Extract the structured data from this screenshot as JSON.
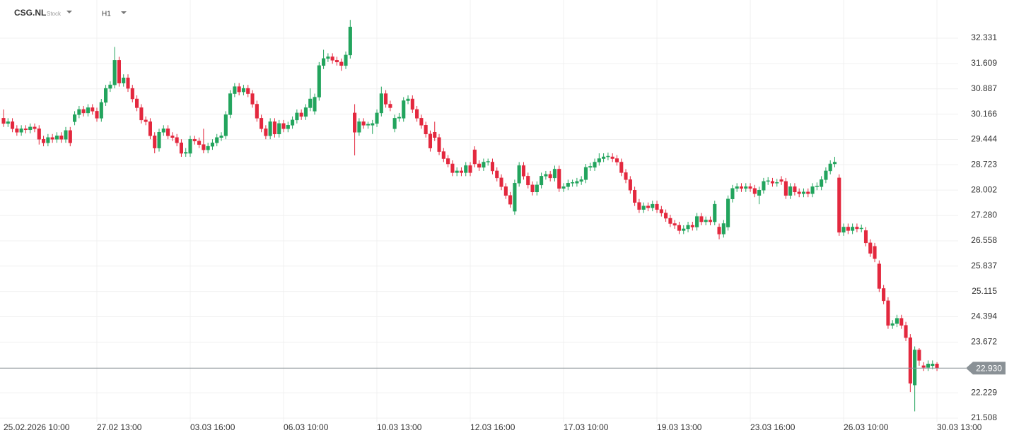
{
  "chart_data": {
    "type": "candlestick",
    "symbol": "CSG.NL",
    "instrument_type": "Stock",
    "interval": "H1",
    "up_color": "#22a45d",
    "down_color": "#e3283e",
    "grid": true,
    "ylim": [
      21.387,
      33.417
    ],
    "yticks": [
      32.331,
      31.609,
      30.887,
      30.166,
      29.444,
      28.723,
      28.002,
      {
        "value": 27.28,
        "label": "27.280"
      },
      26.558,
      25.837,
      25.115,
      24.394,
      23.672,
      22.229,
      21.508
    ],
    "last_price": {
      "value": 22.93,
      "label": "22.930"
    },
    "categories": [
      "25.02.2026 10:00",
      null,
      null,
      null,
      null,
      null,
      null,
      null,
      null,
      null,
      null,
      null,
      null,
      null,
      null,
      null,
      null,
      null,
      null,
      null,
      null,
      "27.02 13:00",
      null,
      null,
      null,
      null,
      null,
      null,
      null,
      null,
      null,
      null,
      null,
      null,
      null,
      null,
      null,
      null,
      null,
      null,
      null,
      null,
      "03.03 16:00",
      null,
      null,
      null,
      null,
      null,
      null,
      null,
      null,
      null,
      null,
      null,
      null,
      null,
      null,
      null,
      null,
      null,
      null,
      null,
      null,
      "06.03 10:00",
      null,
      null,
      null,
      null,
      null,
      null,
      null,
      null,
      null,
      null,
      null,
      null,
      null,
      null,
      null,
      null,
      null,
      null,
      null,
      null,
      "10.03 13:00",
      null,
      null,
      null,
      null,
      null,
      null,
      null,
      null,
      null,
      null,
      null,
      null,
      null,
      null,
      null,
      null,
      null,
      null,
      null,
      null,
      "12.03 16:00",
      null,
      null,
      null,
      null,
      null,
      null,
      null,
      null,
      null,
      null,
      null,
      null,
      null,
      null,
      null,
      null,
      null,
      null,
      null,
      null,
      "17.03 10:00",
      null,
      null,
      null,
      null,
      null,
      null,
      null,
      null,
      null,
      null,
      null,
      null,
      null,
      null,
      null,
      null,
      null,
      null,
      null,
      null,
      "19.03 13:00",
      null,
      null,
      null,
      null,
      null,
      null,
      null,
      null,
      null,
      null,
      null,
      null,
      null,
      null,
      null,
      null,
      null,
      null,
      null,
      null,
      "23.03 16:00",
      null,
      null,
      null,
      null,
      null,
      null,
      null,
      null,
      null,
      null,
      null,
      null,
      null,
      null,
      null,
      null,
      null,
      null,
      null,
      null,
      "26.03 10:00",
      null,
      null,
      null,
      null,
      null,
      null,
      null,
      null,
      null,
      null,
      null,
      null,
      null,
      null,
      null,
      null,
      null,
      null,
      null,
      null,
      "30.03 13:00"
    ],
    "open": [
      30.05,
      29.9,
      29.95,
      29.75,
      29.65,
      29.75,
      29.72,
      29.8,
      29.75,
      29.45,
      29.35,
      29.5,
      29.45,
      29.55,
      29.45,
      29.7,
      29.95,
      30.15,
      30.3,
      30.2,
      30.35,
      30.25,
      30.05,
      30.5,
      30.9,
      31.0,
      31.7,
      31.05,
      31.2,
      30.9,
      30.6,
      30.35,
      30.0,
      29.95,
      29.55,
      29.2,
      29.65,
      29.75,
      29.55,
      29.5,
      29.35,
      29.05,
      29.05,
      29.45,
      29.4,
      29.3,
      29.15,
      29.25,
      29.35,
      29.5,
      29.55,
      30.15,
      30.75,
      30.95,
      30.8,
      30.9,
      30.75,
      30.45,
      30.05,
      29.75,
      29.55,
      29.95,
      29.6,
      29.9,
      29.75,
      29.85,
      30.0,
      30.2,
      30.1,
      30.35,
      30.25,
      30.65,
      31.55,
      31.75,
      31.8,
      31.7,
      31.65,
      31.55,
      31.85,
      30.2,
      29.65,
      29.95,
      29.85,
      29.85,
      29.9,
      30.2,
      30.75,
      30.45,
      29.75,
      30.05,
      30.05,
      30.55,
      30.6,
      30.3,
      30.05,
      29.85,
      29.6,
      29.65,
      29.5,
      29.1,
      28.9,
      28.75,
      28.5,
      28.55,
      28.5,
      28.7,
      29.15,
      28.75,
      28.65,
      28.8,
      28.8,
      28.55,
      28.35,
      28.1,
      27.85,
      27.4,
      28.2,
      28.7,
      28.4,
      28.15,
      27.95,
      28.15,
      28.4,
      28.45,
      28.35,
      28.6,
      28.05,
      28.1,
      28.2,
      28.2,
      28.25,
      28.3,
      28.65,
      28.65,
      28.8,
      28.9,
      28.95,
      28.95,
      28.9,
      28.8,
      28.5,
      28.3,
      28.0,
      27.65,
      27.45,
      27.55,
      27.5,
      27.6,
      27.45,
      27.35,
      27.2,
      27.05,
      27.0,
      26.85,
      26.9,
      27.0,
      26.95,
      27.25,
      27.1,
      27.15,
      27.1,
      26.95,
      26.75,
      26.95,
      27.75,
      28.05,
      28.1,
      28.05,
      28.1,
      28.05,
      27.85,
      28.0,
      28.25,
      28.25,
      28.2,
      28.3,
      28.25,
      27.85,
      28.1,
      27.95,
      27.9,
      27.95,
      27.9,
      28.1,
      28.1,
      28.3,
      28.55,
      28.75,
      28.35,
      26.8,
      26.95,
      26.85,
      26.95,
      26.9,
      26.85,
      26.5,
      26.4,
      25.9,
      25.2,
      24.85,
      24.15,
      24.2,
      24.35,
      24.15,
      23.8,
      22.45,
      23.45,
      23.0,
      22.95,
      23.0,
      23.05
    ],
    "high": [
      30.3,
      30.05,
      30.05,
      29.85,
      29.85,
      29.85,
      29.9,
      29.9,
      29.85,
      29.55,
      29.6,
      29.6,
      29.65,
      29.65,
      29.8,
      29.8,
      30.25,
      30.4,
      30.4,
      30.45,
      30.45,
      30.35,
      30.6,
      31.0,
      31.1,
      32.08,
      31.8,
      31.3,
      31.3,
      31.0,
      30.7,
      30.45,
      30.1,
      30.05,
      29.65,
      29.75,
      29.85,
      29.85,
      29.65,
      29.6,
      29.45,
      29.2,
      29.55,
      29.55,
      29.5,
      29.75,
      29.35,
      29.45,
      29.6,
      29.65,
      30.25,
      30.85,
      31.05,
      31.05,
      31.0,
      31.0,
      30.85,
      30.55,
      30.15,
      29.85,
      30.05,
      30.05,
      30.0,
      30.0,
      29.95,
      30.1,
      30.3,
      30.3,
      30.45,
      30.9,
      30.75,
      31.65,
      32.0,
      31.9,
      31.9,
      31.8,
      31.75,
      31.95,
      32.85,
      30.45,
      30.05,
      30.05,
      29.95,
      30.0,
      30.3,
      30.95,
      30.85,
      30.55,
      30.15,
      30.2,
      30.65,
      30.7,
      30.7,
      30.4,
      30.15,
      29.95,
      29.7,
      29.95,
      29.6,
      29.2,
      29.0,
      28.85,
      28.65,
      28.65,
      28.8,
      28.8,
      29.25,
      28.85,
      28.9,
      28.9,
      28.9,
      28.65,
      28.45,
      28.2,
      27.95,
      28.3,
      28.8,
      28.8,
      28.5,
      28.25,
      28.25,
      28.5,
      28.55,
      28.55,
      28.7,
      28.7,
      28.2,
      28.3,
      28.3,
      28.35,
      28.4,
      28.75,
      28.78,
      28.9,
      29.05,
      29.05,
      29.07,
      29.05,
      29.0,
      28.9,
      28.6,
      28.4,
      28.1,
      27.75,
      27.65,
      27.65,
      27.7,
      27.7,
      27.55,
      27.45,
      27.3,
      27.15,
      27.1,
      27.0,
      27.1,
      27.1,
      27.35,
      27.35,
      27.25,
      27.25,
      27.7,
      27.05,
      27.15,
      27.85,
      28.15,
      28.2,
      28.2,
      28.2,
      28.2,
      28.15,
      28.1,
      28.35,
      28.37,
      28.35,
      28.32,
      28.4,
      28.35,
      28.2,
      28.2,
      28.05,
      28.05,
      28.05,
      28.2,
      28.22,
      28.4,
      28.65,
      28.85,
      28.95,
      28.45,
      27.05,
      27.05,
      27.05,
      27.05,
      27.02,
      26.95,
      26.6,
      26.5,
      26.0,
      25.3,
      24.95,
      24.3,
      24.45,
      24.45,
      24.25,
      23.9,
      23.55,
      23.5,
      23.1,
      23.15,
      23.15,
      23.1
    ],
    "low": [
      29.8,
      29.8,
      29.65,
      29.55,
      29.55,
      29.62,
      29.62,
      29.65,
      29.3,
      29.25,
      29.25,
      29.35,
      29.35,
      29.35,
      29.35,
      29.25,
      29.85,
      30.05,
      30.1,
      30.1,
      30.15,
      29.95,
      29.95,
      30.4,
      30.8,
      30.9,
      30.95,
      30.95,
      30.8,
      30.5,
      30.25,
      29.9,
      29.85,
      29.45,
      29.05,
      29.1,
      29.55,
      29.45,
      29.4,
      29.25,
      28.95,
      28.95,
      28.95,
      29.3,
      29.2,
      29.05,
      29.05,
      29.15,
      29.25,
      29.4,
      29.45,
      30.05,
      30.65,
      30.7,
      30.7,
      30.65,
      30.35,
      29.95,
      29.65,
      29.45,
      29.45,
      29.5,
      29.5,
      29.65,
      29.65,
      29.75,
      29.9,
      30.0,
      30.0,
      30.25,
      30.15,
      30.55,
      31.45,
      31.65,
      31.6,
      31.55,
      31.4,
      31.45,
      31.75,
      28.99,
      29.55,
      29.75,
      29.75,
      29.6,
      29.8,
      30.1,
      30.35,
      30.25,
      29.65,
      29.95,
      29.95,
      30.45,
      30.2,
      29.95,
      29.75,
      29.5,
      29.1,
      29.4,
      29.0,
      28.8,
      28.65,
      28.4,
      28.4,
      28.4,
      28.4,
      28.4,
      28.65,
      28.55,
      28.55,
      28.7,
      28.45,
      28.25,
      28.0,
      27.75,
      27.5,
      27.3,
      28.1,
      28.3,
      28.05,
      27.85,
      27.85,
      28.05,
      28.3,
      28.25,
      28.25,
      27.95,
      27.95,
      28.0,
      28.1,
      28.1,
      28.15,
      28.2,
      28.55,
      28.55,
      28.7,
      28.8,
      28.85,
      28.8,
      28.7,
      28.4,
      28.2,
      27.9,
      27.55,
      27.35,
      27.35,
      27.4,
      27.4,
      27.35,
      27.25,
      27.1,
      26.95,
      26.9,
      26.75,
      26.75,
      26.8,
      26.85,
      26.85,
      27.0,
      27.0,
      27.0,
      27.0,
      26.6,
      26.65,
      26.85,
      27.65,
      27.95,
      27.95,
      27.95,
      27.95,
      27.8,
      27.6,
      27.9,
      28.15,
      28.1,
      28.1,
      28.15,
      27.75,
      27.75,
      27.85,
      27.8,
      27.8,
      27.8,
      27.8,
      28.0,
      28.0,
      28.2,
      28.45,
      28.65,
      26.7,
      26.7,
      26.75,
      26.75,
      26.8,
      26.8,
      26.4,
      26.1,
      25.95,
      25.1,
      24.75,
      24.05,
      24.05,
      24.1,
      24.05,
      23.7,
      22.25,
      21.7,
      23.0,
      22.85,
      22.85,
      22.9,
      22.85
    ],
    "close": [
      29.9,
      29.95,
      29.75,
      29.65,
      29.75,
      29.72,
      29.8,
      29.75,
      29.45,
      29.35,
      29.5,
      29.45,
      29.55,
      29.45,
      29.7,
      29.35,
      30.15,
      30.3,
      30.2,
      30.35,
      30.25,
      30.05,
      30.5,
      30.9,
      31.0,
      31.7,
      31.05,
      31.2,
      30.9,
      30.6,
      30.35,
      30.0,
      29.95,
      29.55,
      29.2,
      29.65,
      29.75,
      29.55,
      29.5,
      29.35,
      29.05,
      29.08,
      29.45,
      29.4,
      29.3,
      29.15,
      29.25,
      29.35,
      29.5,
      29.55,
      30.15,
      30.75,
      30.95,
      30.8,
      30.9,
      30.75,
      30.45,
      30.05,
      29.75,
      29.55,
      29.95,
      29.6,
      29.9,
      29.75,
      29.85,
      30.0,
      30.2,
      30.1,
      30.35,
      30.6,
      30.65,
      31.55,
      31.75,
      31.8,
      31.7,
      31.65,
      31.55,
      31.85,
      32.65,
      29.65,
      29.95,
      29.85,
      29.88,
      29.9,
      30.2,
      30.75,
      30.45,
      30.35,
      30.05,
      30.08,
      30.55,
      30.6,
      30.3,
      30.05,
      29.85,
      29.6,
      29.2,
      29.5,
      29.1,
      28.9,
      28.75,
      28.5,
      28.55,
      28.5,
      28.7,
      28.5,
      28.75,
      28.65,
      28.8,
      28.82,
      28.55,
      28.35,
      28.1,
      27.85,
      27.6,
      28.2,
      28.7,
      28.4,
      28.15,
      27.95,
      28.15,
      28.4,
      28.45,
      28.35,
      28.6,
      28.05,
      28.1,
      28.2,
      28.22,
      28.25,
      28.3,
      28.65,
      28.68,
      28.8,
      28.9,
      28.95,
      28.97,
      28.9,
      28.8,
      28.5,
      28.3,
      28.0,
      27.65,
      27.45,
      27.55,
      27.5,
      27.6,
      27.45,
      27.35,
      27.2,
      27.05,
      27.0,
      26.85,
      26.9,
      27.0,
      26.95,
      27.25,
      27.1,
      27.15,
      27.1,
      27.6,
      26.75,
      27.05,
      27.75,
      28.05,
      28.1,
      28.05,
      28.1,
      28.05,
      27.9,
      28.0,
      28.25,
      28.27,
      28.2,
      28.22,
      28.25,
      27.85,
      28.1,
      27.95,
      27.9,
      27.95,
      27.9,
      28.1,
      28.12,
      28.3,
      28.55,
      28.75,
      28.8,
      26.8,
      26.95,
      26.85,
      26.95,
      26.9,
      26.92,
      26.5,
      26.2,
      26.05,
      25.2,
      24.85,
      24.15,
      24.2,
      24.35,
      24.15,
      23.8,
      22.5,
      23.45,
      23.15,
      22.95,
      23.05,
      23.05,
      22.93
    ]
  }
}
